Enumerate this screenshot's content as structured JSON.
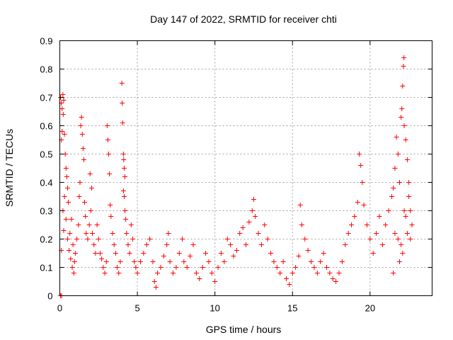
{
  "chart_data": {
    "type": "scatter",
    "title": "Day 147 of 2022, SRMTID for receiver chti",
    "xlabel": "GPS time / hours",
    "ylabel": "SRMTID / TECUs",
    "xlim": [
      0,
      24
    ],
    "ylim": [
      0,
      0.9
    ],
    "x_ticks": [
      0,
      5,
      10,
      15,
      20
    ],
    "y_ticks": [
      0,
      0.1,
      0.2,
      0.3,
      0.4,
      0.5,
      0.6,
      0.7,
      0.8,
      0.9
    ],
    "grid": true,
    "marker": "+",
    "color": "#ff0000",
    "series": [
      {
        "name": "SRMTID",
        "points": [
          [
            0.05,
            0.7
          ],
          [
            0.1,
            0.68
          ],
          [
            0.15,
            0.66
          ],
          [
            0.2,
            0.71
          ],
          [
            0.22,
            0.64
          ],
          [
            0.25,
            0.69
          ],
          [
            0.1,
            0.55
          ],
          [
            0.15,
            0.58
          ],
          [
            0.3,
            0.57
          ],
          [
            0.35,
            0.5
          ],
          [
            0.4,
            0.45
          ],
          [
            0.45,
            0.42
          ],
          [
            0.5,
            0.38
          ],
          [
            0.55,
            0.33
          ],
          [
            0.3,
            0.35
          ],
          [
            0.2,
            0.3
          ],
          [
            0.4,
            0.27
          ],
          [
            0.25,
            0.23
          ],
          [
            0.5,
            0.2
          ],
          [
            0.6,
            0.16
          ],
          [
            0.7,
            0.13
          ],
          [
            0.8,
            0.1
          ],
          [
            0.9,
            0.08
          ],
          [
            0.65,
            0.22
          ],
          [
            0.75,
            0.27
          ],
          [
            0.85,
            0.18
          ],
          [
            0.1,
            0.16
          ],
          [
            0.05,
            0.0
          ],
          [
            0.12,
            0.0
          ],
          [
            0.95,
            0.12
          ],
          [
            1.0,
            0.15
          ],
          [
            1.1,
            0.2
          ],
          [
            1.2,
            0.25
          ],
          [
            1.25,
            0.35
          ],
          [
            1.3,
            0.4
          ],
          [
            1.35,
            0.6
          ],
          [
            1.4,
            0.63
          ],
          [
            1.45,
            0.57
          ],
          [
            1.5,
            0.52
          ],
          [
            1.55,
            0.48
          ],
          [
            1.6,
            0.33
          ],
          [
            1.65,
            0.28
          ],
          [
            1.7,
            0.22
          ],
          [
            1.8,
            0.2
          ],
          [
            1.9,
            0.25
          ],
          [
            2.0,
            0.3
          ],
          [
            1.95,
            0.43
          ],
          [
            2.05,
            0.38
          ],
          [
            2.1,
            0.22
          ],
          [
            2.2,
            0.18
          ],
          [
            2.3,
            0.15
          ],
          [
            2.4,
            0.25
          ],
          [
            2.5,
            0.2
          ],
          [
            2.6,
            0.15
          ],
          [
            2.7,
            0.13
          ],
          [
            2.8,
            0.1
          ],
          [
            2.9,
            0.08
          ],
          [
            3.0,
            0.12
          ],
          [
            3.05,
            0.6
          ],
          [
            3.1,
            0.55
          ],
          [
            3.15,
            0.5
          ],
          [
            3.2,
            0.43
          ],
          [
            3.25,
            0.32
          ],
          [
            3.3,
            0.28
          ],
          [
            3.4,
            0.22
          ],
          [
            3.5,
            0.18
          ],
          [
            3.6,
            0.15
          ],
          [
            3.7,
            0.1
          ],
          [
            3.8,
            0.08
          ],
          [
            3.9,
            0.12
          ],
          [
            4.0,
            0.75
          ],
          [
            4.02,
            0.68
          ],
          [
            4.05,
            0.61
          ],
          [
            4.1,
            0.5
          ],
          [
            4.12,
            0.48
          ],
          [
            4.15,
            0.45
          ],
          [
            4.2,
            0.42
          ],
          [
            4.1,
            0.37
          ],
          [
            4.15,
            0.35
          ],
          [
            4.2,
            0.3
          ],
          [
            4.25,
            0.27
          ],
          [
            4.3,
            0.22
          ],
          [
            4.4,
            0.18
          ],
          [
            4.5,
            0.15
          ],
          [
            4.6,
            0.25
          ],
          [
            4.7,
            0.2
          ],
          [
            4.8,
            0.12
          ],
          [
            4.9,
            0.1
          ],
          [
            5.0,
            0.08
          ],
          [
            5.2,
            0.12
          ],
          [
            5.4,
            0.15
          ],
          [
            5.6,
            0.18
          ],
          [
            5.8,
            0.2
          ],
          [
            6.0,
            0.12
          ],
          [
            6.1,
            0.05
          ],
          [
            6.2,
            0.03
          ],
          [
            6.3,
            0.08
          ],
          [
            6.5,
            0.1
          ],
          [
            6.7,
            0.14
          ],
          [
            6.9,
            0.18
          ],
          [
            7.0,
            0.22
          ],
          [
            7.1,
            0.12
          ],
          [
            7.3,
            0.08
          ],
          [
            7.5,
            0.1
          ],
          [
            7.7,
            0.15
          ],
          [
            7.9,
            0.2
          ],
          [
            8.0,
            0.12
          ],
          [
            8.2,
            0.1
          ],
          [
            8.4,
            0.14
          ],
          [
            8.6,
            0.18
          ],
          [
            8.8,
            0.08
          ],
          [
            9.0,
            0.06
          ],
          [
            9.2,
            0.1
          ],
          [
            9.4,
            0.15
          ],
          [
            9.6,
            0.12
          ],
          [
            9.8,
            0.08
          ],
          [
            10.0,
            0.05
          ],
          [
            10.2,
            0.1
          ],
          [
            10.4,
            0.15
          ],
          [
            10.6,
            0.12
          ],
          [
            10.8,
            0.2
          ],
          [
            11.0,
            0.18
          ],
          [
            11.2,
            0.14
          ],
          [
            11.4,
            0.16
          ],
          [
            11.6,
            0.22
          ],
          [
            11.8,
            0.24
          ],
          [
            12.0,
            0.18
          ],
          [
            12.2,
            0.26
          ],
          [
            12.4,
            0.3
          ],
          [
            12.5,
            0.34
          ],
          [
            12.6,
            0.28
          ],
          [
            12.8,
            0.22
          ],
          [
            13.0,
            0.18
          ],
          [
            13.2,
            0.25
          ],
          [
            13.4,
            0.2
          ],
          [
            13.6,
            0.15
          ],
          [
            13.8,
            0.12
          ],
          [
            14.0,
            0.1
          ],
          [
            14.2,
            0.08
          ],
          [
            14.4,
            0.12
          ],
          [
            14.6,
            0.06
          ],
          [
            14.8,
            0.04
          ],
          [
            15.0,
            0.08
          ],
          [
            15.2,
            0.1
          ],
          [
            15.4,
            0.14
          ],
          [
            15.5,
            0.32
          ],
          [
            15.6,
            0.25
          ],
          [
            15.8,
            0.2
          ],
          [
            16.0,
            0.16
          ],
          [
            16.2,
            0.12
          ],
          [
            16.4,
            0.1
          ],
          [
            16.6,
            0.08
          ],
          [
            16.8,
            0.12
          ],
          [
            17.0,
            0.15
          ],
          [
            17.2,
            0.1
          ],
          [
            17.4,
            0.08
          ],
          [
            17.6,
            0.06
          ],
          [
            17.8,
            0.05
          ],
          [
            18.0,
            0.08
          ],
          [
            18.2,
            0.12
          ],
          [
            18.4,
            0.18
          ],
          [
            18.6,
            0.22
          ],
          [
            18.8,
            0.25
          ],
          [
            19.0,
            0.28
          ],
          [
            19.2,
            0.33
          ],
          [
            19.3,
            0.5
          ],
          [
            19.4,
            0.46
          ],
          [
            19.5,
            0.4
          ],
          [
            19.6,
            0.32
          ],
          [
            19.8,
            0.25
          ],
          [
            20.0,
            0.2
          ],
          [
            20.2,
            0.15
          ],
          [
            20.4,
            0.22
          ],
          [
            20.6,
            0.28
          ],
          [
            20.8,
            0.18
          ],
          [
            21.0,
            0.25
          ],
          [
            21.2,
            0.3
          ],
          [
            21.4,
            0.35
          ],
          [
            21.5,
            0.38
          ],
          [
            21.6,
            0.45
          ],
          [
            21.7,
            0.56
          ],
          [
            21.8,
            0.5
          ],
          [
            21.9,
            0.4
          ],
          [
            22.0,
            0.63
          ],
          [
            22.05,
            0.66
          ],
          [
            22.1,
            0.74
          ],
          [
            22.15,
            0.81
          ],
          [
            22.18,
            0.84
          ],
          [
            22.2,
            0.6
          ],
          [
            22.3,
            0.55
          ],
          [
            22.4,
            0.48
          ],
          [
            22.5,
            0.4
          ],
          [
            22.6,
            0.3
          ],
          [
            22.7,
            0.25
          ],
          [
            22.2,
            0.3
          ],
          [
            22.3,
            0.28
          ],
          [
            21.8,
            0.2
          ],
          [
            21.6,
            0.22
          ],
          [
            22.0,
            0.18
          ],
          [
            22.4,
            0.22
          ],
          [
            22.5,
            0.35
          ],
          [
            22.6,
            0.2
          ],
          [
            21.5,
            0.08
          ],
          [
            21.9,
            0.12
          ],
          [
            22.1,
            0.15
          ]
        ]
      }
    ]
  }
}
